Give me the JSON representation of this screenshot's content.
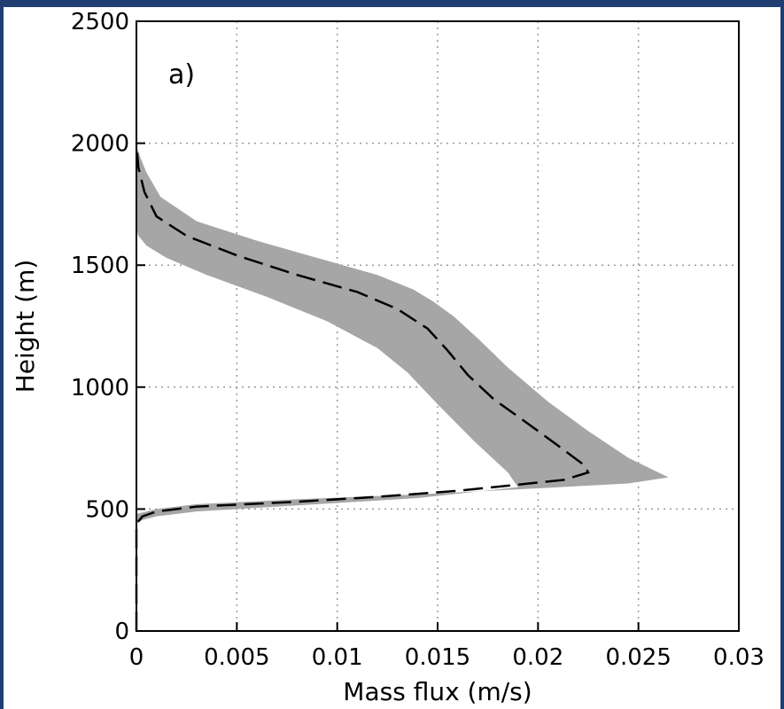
{
  "colors": {
    "frame": "#1f3f73",
    "band_fill": "#a6a6a6",
    "line": "#000000",
    "grid": "#9a9a9a"
  },
  "chart_data": {
    "type": "area",
    "panel_label": "a)",
    "xlabel": "Mass flux (m/s)",
    "ylabel": "Height (m)",
    "xlim": [
      0,
      0.03
    ],
    "ylim": [
      0,
      2500
    ],
    "xticks": [
      "0",
      "0.005",
      "0.01",
      "0.015",
      "0.02",
      "0.025",
      "0.03"
    ],
    "yticks": [
      "0",
      "500",
      "1000",
      "1500",
      "2000",
      "2500"
    ],
    "grid": true,
    "series": [
      {
        "style": "dashed-line",
        "x": [
          0,
          0,
          0.0003,
          0.001,
          0.003,
          0.008,
          0.012,
          0.016,
          0.019,
          0.0213,
          0.0225,
          0.0223,
          0.021,
          0.0195,
          0.0178,
          0.0165,
          0.0155,
          0.0145,
          0.013,
          0.011,
          0.008,
          0.005,
          0.0025,
          0.001,
          0.0004,
          0.0001,
          0
        ],
        "y": [
          0,
          440,
          470,
          490,
          510,
          530,
          550,
          575,
          600,
          620,
          650,
          680,
          760,
          850,
          950,
          1050,
          1150,
          1240,
          1320,
          1390,
          1460,
          1540,
          1620,
          1700,
          1800,
          1900,
          2000
        ]
      },
      {
        "style": "shaded-band",
        "upper_x": [
          0,
          0.001,
          0.003,
          0.008,
          0.014,
          0.02,
          0.0245,
          0.0265,
          0.0245,
          0.0225,
          0.0205,
          0.0185,
          0.017,
          0.0158,
          0.0148,
          0.0138,
          0.012,
          0.009,
          0.006,
          0.003,
          0.0012,
          0.0005,
          0.0002,
          0
        ],
        "upper_y": [
          480,
          500,
          520,
          540,
          560,
          585,
          605,
          630,
          710,
          820,
          940,
          1080,
          1200,
          1290,
          1350,
          1400,
          1460,
          1530,
          1600,
          1680,
          1780,
          1880,
          1940,
          1990
        ],
        "lower_x": [
          0,
          0.0003,
          0.001,
          0.003,
          0.008,
          0.014,
          0.019,
          0.0185,
          0.0168,
          0.015,
          0.0135,
          0.012,
          0.0095,
          0.0065,
          0.0035,
          0.0015,
          0.0005,
          0.0001,
          0
        ],
        "lower_y": [
          440,
          455,
          470,
          490,
          515,
          545,
          590,
          650,
          780,
          930,
          1060,
          1160,
          1270,
          1370,
          1460,
          1530,
          1580,
          1620,
          1650
        ]
      }
    ]
  }
}
